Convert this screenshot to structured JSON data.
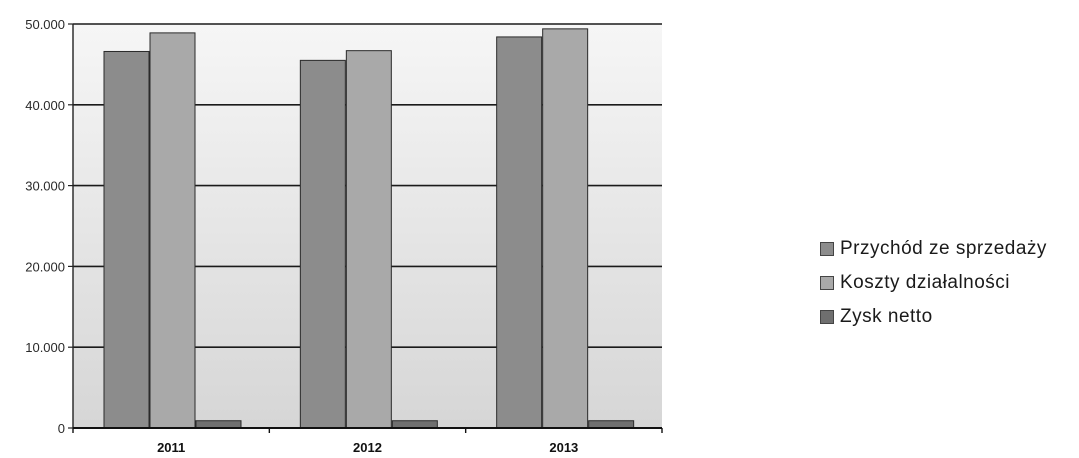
{
  "chart_data": {
    "type": "bar",
    "categories": [
      "2011",
      "2012",
      "2013"
    ],
    "series": [
      {
        "name": "Przychód ze sprzedaży",
        "values": [
          46600,
          45500,
          48400
        ],
        "color": "#8c8c8c"
      },
      {
        "name": "Koszty działalności",
        "values": [
          48900,
          46700,
          49400
        ],
        "color": "#a9a9a9"
      },
      {
        "name": "Zysk netto",
        "values": [
          900,
          900,
          900
        ],
        "color": "#6f6f6f"
      }
    ],
    "y_ticks": [
      "0",
      "10.000",
      "20.000",
      "30.000",
      "40.000",
      "50.000"
    ],
    "ylim": [
      0,
      50000
    ],
    "grid": true,
    "legend_position": "right",
    "plot_background": [
      "#f6f6f6",
      "#d6d6d6"
    ]
  }
}
